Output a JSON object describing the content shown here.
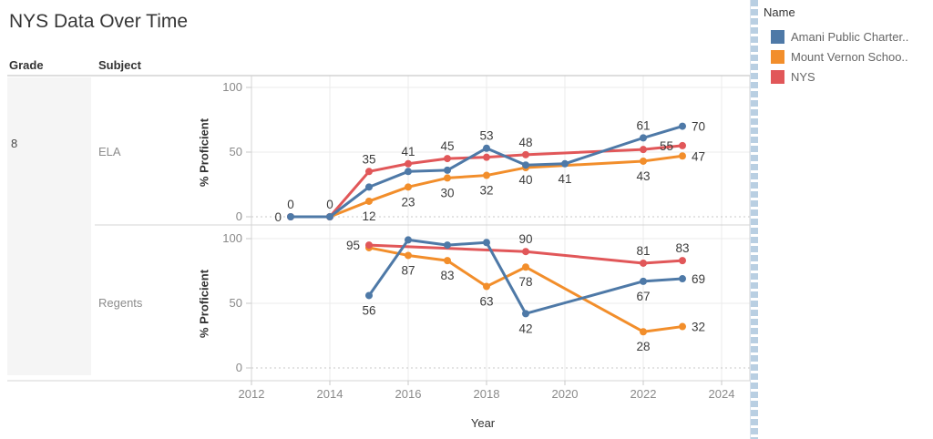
{
  "title": "NYS Data Over Time",
  "row_headers": {
    "grade_label": "Grade",
    "subject_label": "Subject",
    "grade_value": "8"
  },
  "legend": {
    "title": "Name",
    "items": [
      {
        "label": "Amani Public Charter..",
        "color": "#4e79a7"
      },
      {
        "label": "Mount Vernon Schoo..",
        "color": "#f28e2b"
      },
      {
        "label": "NYS",
        "color": "#e15759"
      }
    ]
  },
  "chart_data": {
    "type": "line",
    "title": "NYS Data Over Time",
    "xlabel": "Year",
    "ylabel": "% Proficient",
    "x_ticks": [
      2012,
      2014,
      2016,
      2018,
      2020,
      2022,
      2024
    ],
    "y_ticks": [
      0,
      50,
      100
    ],
    "ylim": [
      0,
      100
    ],
    "xlim": [
      2012,
      2024.6
    ],
    "grid": true,
    "legend_position": "right",
    "panels": [
      {
        "subject": "ELA",
        "series": [
          {
            "name": "Mount Vernon School District",
            "color": "#f28e2b",
            "points": [
              {
                "year": 2014,
                "value": 0,
                "label": null
              },
              {
                "year": 2015,
                "value": 12,
                "label": "12",
                "label_pos": "below"
              },
              {
                "year": 2016,
                "value": 23,
                "label": "23",
                "label_pos": "below"
              },
              {
                "year": 2017,
                "value": 30,
                "label": "30",
                "label_pos": "below"
              },
              {
                "year": 2018,
                "value": 32,
                "label": "32",
                "label_pos": "below"
              },
              {
                "year": 2019,
                "value": 38,
                "label": null
              },
              {
                "year": 2022,
                "value": 43,
                "label": "43",
                "label_pos": "below"
              },
              {
                "year": 2023,
                "value": 47,
                "label": "47",
                "label_pos": "right"
              }
            ]
          },
          {
            "name": "NYS",
            "color": "#e15759",
            "points": [
              {
                "year": 2013,
                "value": 0,
                "label": "0",
                "label_pos": "above"
              },
              {
                "year": 2014,
                "value": 0,
                "label": null
              },
              {
                "year": 2015,
                "value": 35,
                "label": "35",
                "label_pos": "above"
              },
              {
                "year": 2016,
                "value": 41,
                "label": "41",
                "label_pos": "above"
              },
              {
                "year": 2017,
                "value": 45,
                "label": "45",
                "label_pos": "above"
              },
              {
                "year": 2018,
                "value": 46,
                "label": null
              },
              {
                "year": 2019,
                "value": 48,
                "label": "48",
                "label_pos": "above"
              },
              {
                "year": 2022,
                "value": 52,
                "label": null
              },
              {
                "year": 2023,
                "value": 55,
                "label": "55",
                "label_pos": "left"
              }
            ]
          },
          {
            "name": "Amani Public Charter School",
            "color": "#4e79a7",
            "points": [
              {
                "year": 2013,
                "value": 0,
                "label": "0",
                "label_pos": "left"
              },
              {
                "year": 2014,
                "value": 0,
                "label": "0",
                "label_pos": "above"
              },
              {
                "year": 2015,
                "value": 23,
                "label": null
              },
              {
                "year": 2016,
                "value": 35,
                "label": null
              },
              {
                "year": 2017,
                "value": 36,
                "label": null
              },
              {
                "year": 2018,
                "value": 53,
                "label": "53",
                "label_pos": "above"
              },
              {
                "year": 2019,
                "value": 40,
                "label": "40",
                "label_pos": "below"
              },
              {
                "year": 2020,
                "value": 41,
                "label": "41",
                "label_pos": "below"
              },
              {
                "year": 2022,
                "value": 61,
                "label": "61",
                "label_pos": "above"
              },
              {
                "year": 2023,
                "value": 70,
                "label": "70",
                "label_pos": "right"
              }
            ]
          }
        ]
      },
      {
        "subject": "Regents",
        "series": [
          {
            "name": "Mount Vernon School District",
            "color": "#f28e2b",
            "points": [
              {
                "year": 2015,
                "value": 93,
                "label": null
              },
              {
                "year": 2016,
                "value": 87,
                "label": "87",
                "label_pos": "below"
              },
              {
                "year": 2017,
                "value": 83,
                "label": "83",
                "label_pos": "below"
              },
              {
                "year": 2018,
                "value": 63,
                "label": "63",
                "label_pos": "below"
              },
              {
                "year": 2019,
                "value": 78,
                "label": "78",
                "label_pos": "below"
              },
              {
                "year": 2022,
                "value": 28,
                "label": "28",
                "label_pos": "below"
              },
              {
                "year": 2023,
                "value": 32,
                "label": "32",
                "label_pos": "right"
              }
            ]
          },
          {
            "name": "NYS",
            "color": "#e15759",
            "points": [
              {
                "year": 2015,
                "value": 95,
                "label": "95",
                "label_pos": "left"
              },
              {
                "year": 2019,
                "value": 90,
                "label": "90",
                "label_pos": "above"
              },
              {
                "year": 2022,
                "value": 81,
                "label": "81",
                "label_pos": "above"
              },
              {
                "year": 2023,
                "value": 83,
                "label": "83",
                "label_pos": "above"
              }
            ]
          },
          {
            "name": "Amani Public Charter School",
            "color": "#4e79a7",
            "points": [
              {
                "year": 2015,
                "value": 56,
                "label": "56",
                "label_pos": "below"
              },
              {
                "year": 2016,
                "value": 99,
                "label": null
              },
              {
                "year": 2017,
                "value": 95,
                "label": null
              },
              {
                "year": 2018,
                "value": 97,
                "label": null
              },
              {
                "year": 2019,
                "value": 42,
                "label": "42",
                "label_pos": "below"
              },
              {
                "year": 2022,
                "value": 67,
                "label": "67",
                "label_pos": "below"
              },
              {
                "year": 2023,
                "value": 69,
                "label": "69",
                "label_pos": "right"
              }
            ]
          }
        ]
      }
    ]
  }
}
